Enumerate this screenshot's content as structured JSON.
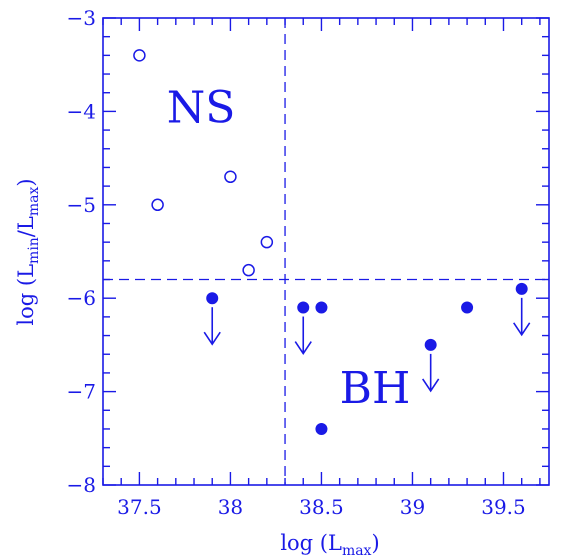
{
  "chart_data": {
    "type": "scatter",
    "color": "#1a1ae6",
    "xlabel": "log (L",
    "xlabel_sub": "max",
    "xlabel_end": ")",
    "ylabel": "log (L",
    "ylabel_sub1": "min",
    "ylabel_mid": "/L",
    "ylabel_sub2": "max",
    "ylabel_end": ")",
    "xlim": [
      37.3,
      39.75
    ],
    "ylim": [
      -8,
      -3
    ],
    "x_ticks": [
      37.5,
      38,
      38.5,
      39,
      39.5
    ],
    "x_tick_labels": [
      "37.5",
      "38",
      "38.5",
      "39",
      "39.5"
    ],
    "y_ticks": [
      -3,
      -4,
      -5,
      -6,
      -7,
      -8
    ],
    "y_tick_labels": [
      "−3",
      "−4",
      "−5",
      "−6",
      "−7",
      "−8"
    ],
    "dividers": {
      "x": 38.3,
      "y": -5.8
    },
    "region_labels": [
      {
        "text": "NS",
        "x": 37.65,
        "y": -3.95
      },
      {
        "text": "BH",
        "x": 38.6,
        "y": -6.95
      }
    ],
    "series": [
      {
        "marker": "open-circle",
        "points": [
          {
            "x": 37.5,
            "y": -3.4
          },
          {
            "x": 37.6,
            "y": -5.0
          },
          {
            "x": 38.0,
            "y": -4.7
          },
          {
            "x": 38.1,
            "y": -5.7
          },
          {
            "x": 38.2,
            "y": -5.4
          }
        ]
      },
      {
        "marker": "filled-circle",
        "points": [
          {
            "x": 37.9,
            "y": -6.0,
            "upper_limit": true
          },
          {
            "x": 38.4,
            "y": -6.1,
            "upper_limit": true
          },
          {
            "x": 38.5,
            "y": -6.1,
            "upper_limit": false
          },
          {
            "x": 38.5,
            "y": -7.4,
            "upper_limit": false
          },
          {
            "x": 39.1,
            "y": -6.5,
            "upper_limit": true
          },
          {
            "x": 39.3,
            "y": -6.1,
            "upper_limit": false
          },
          {
            "x": 39.6,
            "y": -5.9,
            "upper_limit": true
          }
        ]
      }
    ]
  }
}
